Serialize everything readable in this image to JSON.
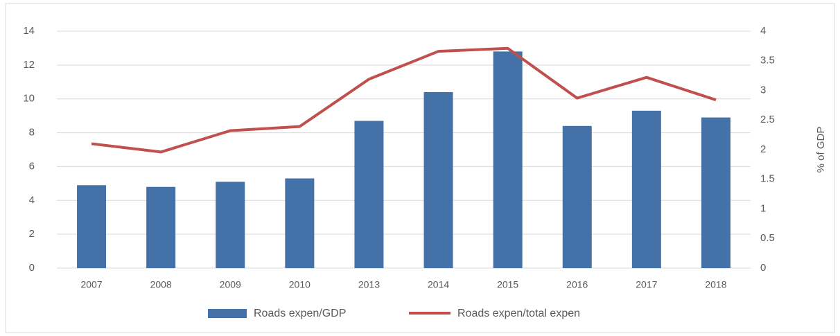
{
  "chart_data": {
    "type": "bar",
    "categories": [
      "2007",
      "2008",
      "2009",
      "2010",
      "2013",
      "2014",
      "2015",
      "2016",
      "2017",
      "2018"
    ],
    "series": [
      {
        "name": "Roads expen/GDP",
        "type": "bar",
        "color": "#4472a8",
        "values": [
          4.9,
          4.8,
          5.1,
          5.3,
          8.7,
          10.4,
          12.8,
          8.4,
          9.3,
          8.9
        ]
      },
      {
        "name": "Roads expen/total expen",
        "type": "line",
        "axis": "y2",
        "color": "#c0504d",
        "values": [
          2.1,
          1.96,
          2.32,
          2.39,
          3.19,
          3.66,
          3.71,
          2.87,
          3.22,
          2.84
        ]
      }
    ],
    "ylim": [
      0,
      14
    ],
    "yticks": [
      0,
      2,
      4,
      6,
      8,
      10,
      12,
      14
    ],
    "y2lim": [
      0,
      4
    ],
    "y2ticks": [
      0,
      0.5,
      1,
      1.5,
      2,
      2.5,
      3,
      3.5,
      4
    ],
    "y2label": "% of GDP",
    "grid": true,
    "legend": "bottom"
  }
}
